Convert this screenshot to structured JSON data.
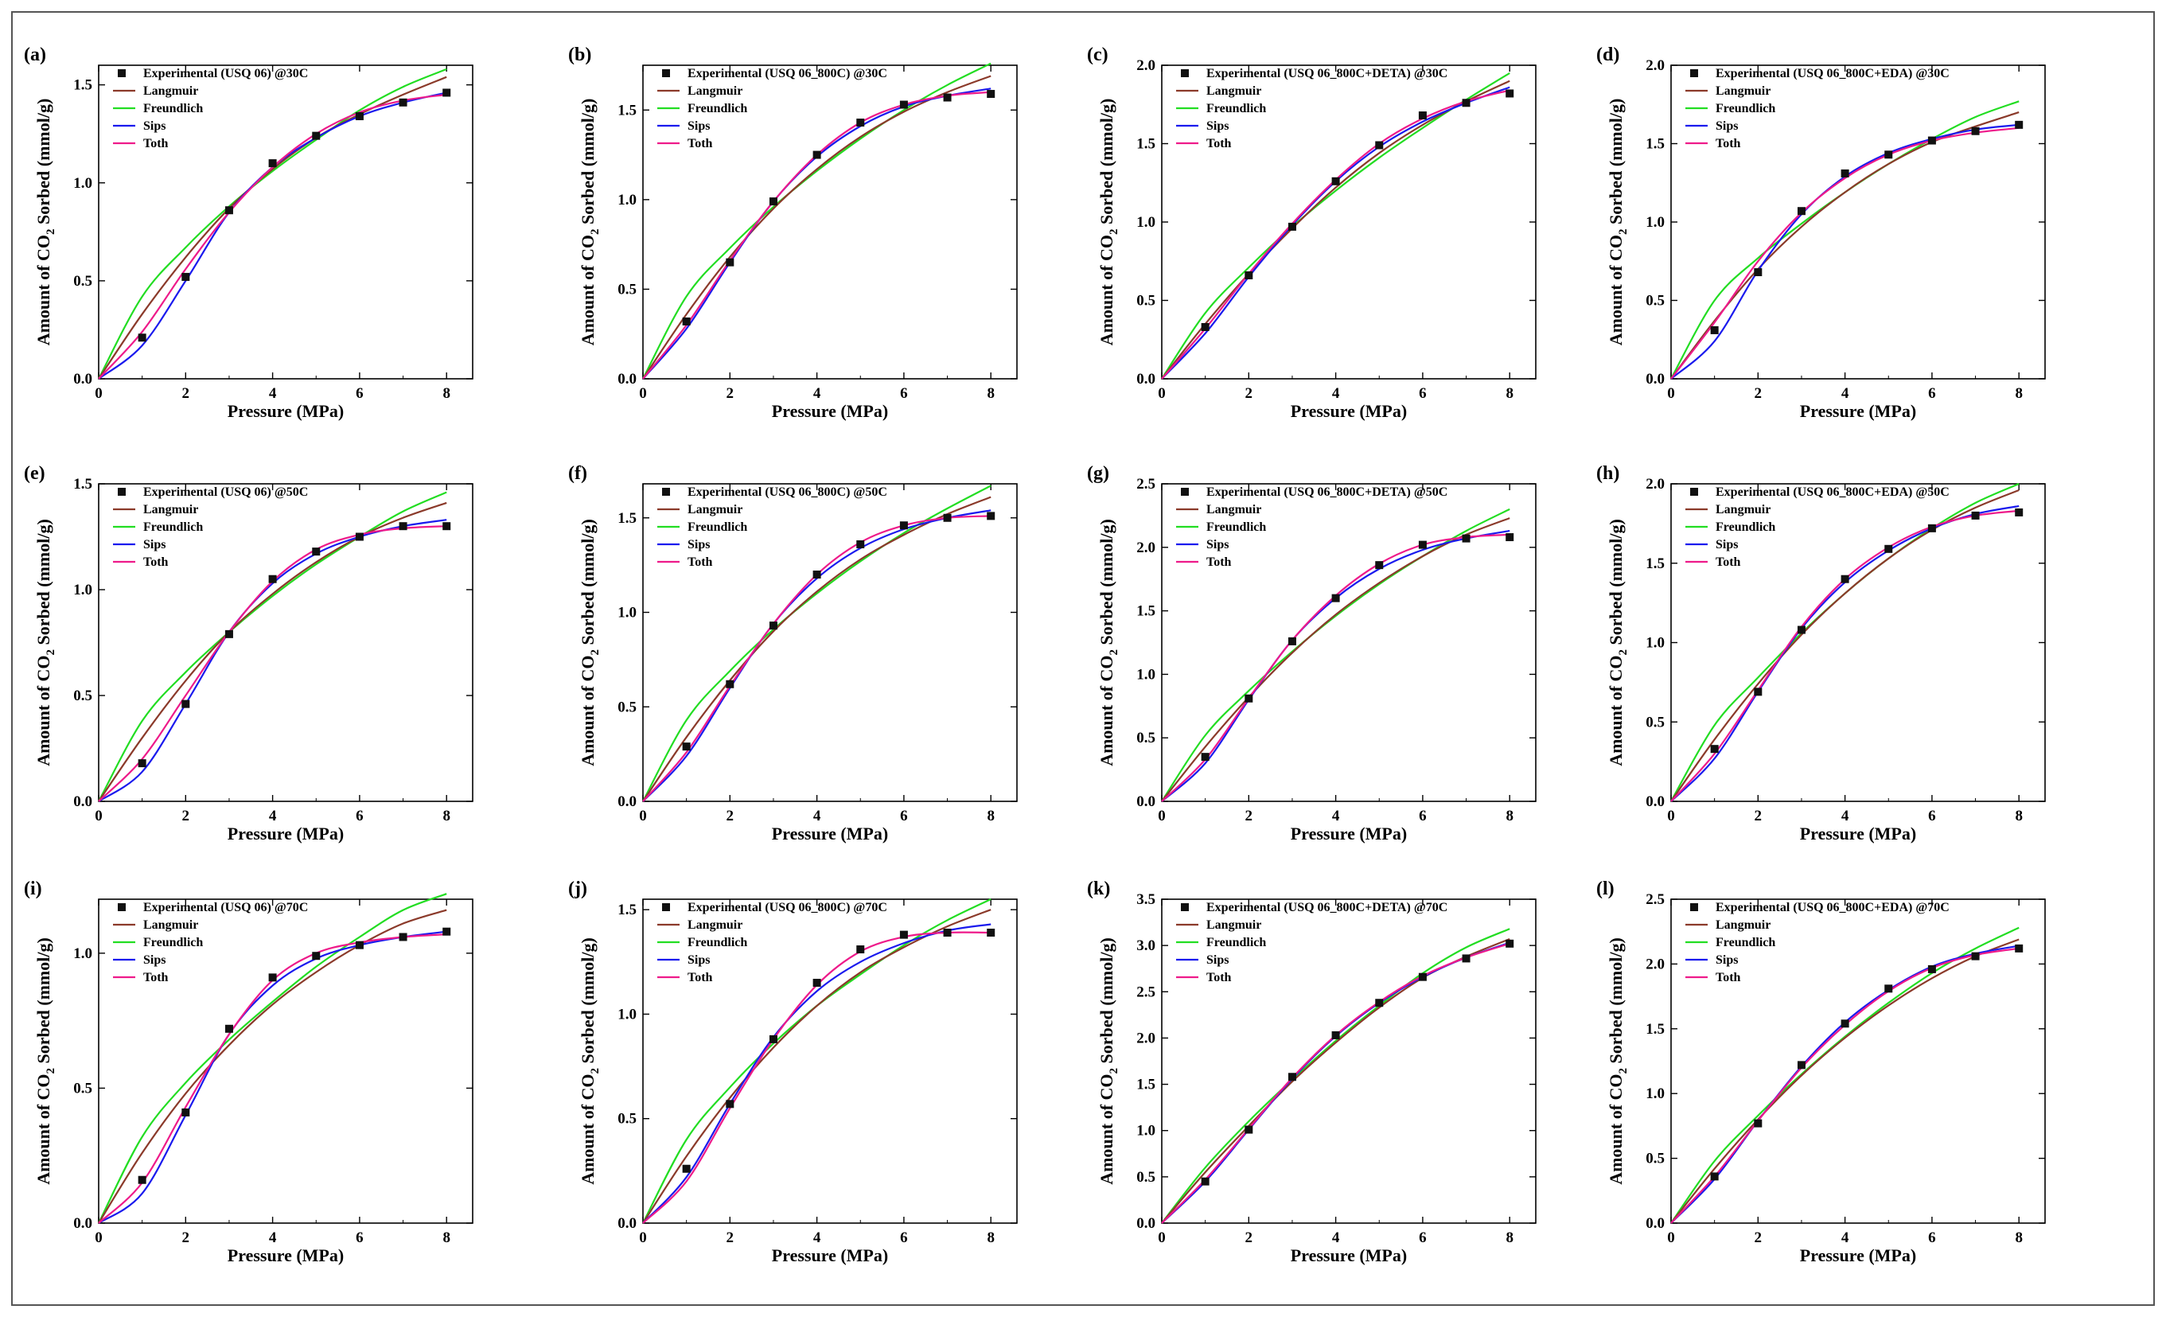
{
  "figure": {
    "series_colors": {
      "Langmuir": "#8b3a2a",
      "Freundlich": "#22dd22",
      "Sips": "#1a1aee",
      "Toth": "#ee1a8a",
      "Experimental": "#111111"
    }
  },
  "chart_data": [
    {
      "type": "scatter",
      "panel": "(a)",
      "legend": [
        "Experimental (USQ 06) @30C",
        "Langmuir",
        "Freundlich",
        "Sips",
        "Toth"
      ],
      "xlabel": "Pressure (MPa)",
      "ylabel": "Amount of CO2 Sorbed (mmol/g)",
      "xlim": [
        0,
        8.6
      ],
      "ylim": [
        0,
        1.6
      ],
      "xticks": [
        0,
        2,
        4,
        6,
        8
      ],
      "yticks": [
        0,
        0.5,
        1.0,
        1.5
      ],
      "yticklabels": [
        "0.0",
        "0.5",
        "1.0",
        "1.5"
      ],
      "x": [
        1,
        2,
        3,
        4,
        5,
        6,
        7,
        8
      ],
      "experimental": [
        0.21,
        0.52,
        0.86,
        1.1,
        1.24,
        1.34,
        1.41,
        1.46
      ],
      "fits": {
        "Langmuir": [
          0,
          0.33,
          0.62,
          0.87,
          1.07,
          1.23,
          1.35,
          1.45,
          1.54
        ],
        "Freundlich": [
          0,
          0.42,
          0.67,
          0.88,
          1.06,
          1.22,
          1.37,
          1.49,
          1.58
        ],
        "Sips": [
          0,
          0.17,
          0.5,
          0.85,
          1.08,
          1.23,
          1.34,
          1.41,
          1.46
        ],
        "Toth": [
          0,
          0.24,
          0.56,
          0.85,
          1.08,
          1.25,
          1.36,
          1.42,
          1.45
        ]
      }
    },
    {
      "type": "scatter",
      "panel": "(b)",
      "legend": [
        "Experimental (USQ 06_800C) @30C",
        "Langmuir",
        "Freundlich",
        "Sips",
        "Toth"
      ],
      "xlabel": "Pressure (MPa)",
      "ylabel": "Amount of CO2 Sorbed (mmol/g)",
      "xlim": [
        0,
        8.6
      ],
      "ylim": [
        0,
        1.75
      ],
      "xticks": [
        0,
        2,
        4,
        6,
        8
      ],
      "yticks": [
        0,
        0.5,
        1.0,
        1.5
      ],
      "yticklabels": [
        "0.0",
        "0.5",
        "1.0",
        "1.5"
      ],
      "x": [
        1,
        2,
        3,
        4,
        5,
        6,
        7,
        8
      ],
      "experimental": [
        0.32,
        0.65,
        0.99,
        1.25,
        1.43,
        1.53,
        1.57,
        1.59
      ],
      "fits": {
        "Langmuir": [
          0,
          0.36,
          0.68,
          0.95,
          1.17,
          1.35,
          1.49,
          1.6,
          1.69
        ],
        "Freundlich": [
          0,
          0.46,
          0.73,
          0.96,
          1.16,
          1.34,
          1.5,
          1.64,
          1.76
        ],
        "Sips": [
          0,
          0.28,
          0.65,
          0.99,
          1.24,
          1.41,
          1.52,
          1.58,
          1.62
        ],
        "Toth": [
          0,
          0.3,
          0.66,
          0.99,
          1.25,
          1.43,
          1.53,
          1.58,
          1.6
        ]
      }
    },
    {
      "type": "scatter",
      "panel": "(c)",
      "legend": [
        "Experimental (USQ 06_800C+DETA) @30C",
        "Langmuir",
        "Freundlich",
        "Sips",
        "Toth"
      ],
      "xlabel": "Pressure (MPa)",
      "ylabel": "Amount of CO2 Sorbed (mmol/g)",
      "xlim": [
        0,
        8.6
      ],
      "ylim": [
        0,
        2.0
      ],
      "xticks": [
        0,
        2,
        4,
        6,
        8
      ],
      "yticks": [
        0,
        0.5,
        1.0,
        1.5,
        2.0
      ],
      "yticklabels": [
        "0.0",
        "0.5",
        "1.0",
        "1.5",
        "2.0"
      ],
      "x": [
        1,
        2,
        3,
        4,
        5,
        6,
        7,
        8
      ],
      "experimental": [
        0.33,
        0.66,
        0.97,
        1.26,
        1.49,
        1.68,
        1.76,
        1.82
      ],
      "fits": {
        "Langmuir": [
          0,
          0.35,
          0.67,
          0.96,
          1.22,
          1.44,
          1.62,
          1.77,
          1.9
        ],
        "Freundlich": [
          0,
          0.42,
          0.71,
          0.97,
          1.2,
          1.41,
          1.6,
          1.78,
          1.95
        ],
        "Sips": [
          0,
          0.29,
          0.65,
          0.98,
          1.26,
          1.48,
          1.64,
          1.76,
          1.86
        ],
        "Toth": [
          0,
          0.32,
          0.67,
          0.99,
          1.27,
          1.5,
          1.66,
          1.77,
          1.84
        ]
      }
    },
    {
      "type": "scatter",
      "panel": "(d)",
      "legend": [
        "Experimental (USQ 06_800C+EDA)  @30C",
        "Langmuir",
        "Freundlich",
        "Sips",
        "Toth"
      ],
      "xlabel": "Pressure (MPa)",
      "ylabel": "Amount of CO2 Sorbed (mmol/g)",
      "xlim": [
        0,
        8.6
      ],
      "ylim": [
        0,
        2.0
      ],
      "xticks": [
        0,
        2,
        4,
        6,
        8
      ],
      "yticks": [
        0,
        0.5,
        1.0,
        1.5,
        2.0
      ],
      "yticklabels": [
        "0.0",
        "0.5",
        "1.0",
        "1.5",
        "2.0"
      ],
      "x": [
        1,
        2,
        3,
        4,
        5,
        6,
        7,
        8
      ],
      "experimental": [
        0.31,
        0.68,
        1.07,
        1.31,
        1.43,
        1.52,
        1.58,
        1.62
      ],
      "fits": {
        "Langmuir": [
          0,
          0.37,
          0.7,
          0.97,
          1.19,
          1.37,
          1.51,
          1.61,
          1.7
        ],
        "Freundlich": [
          0,
          0.5,
          0.77,
          0.99,
          1.19,
          1.37,
          1.53,
          1.67,
          1.77
        ],
        "Sips": [
          0,
          0.24,
          0.69,
          1.05,
          1.29,
          1.44,
          1.53,
          1.59,
          1.62
        ],
        "Toth": [
          0,
          0.36,
          0.75,
          1.06,
          1.28,
          1.43,
          1.52,
          1.57,
          1.6
        ]
      }
    },
    {
      "type": "scatter",
      "panel": "(e)",
      "legend": [
        "Experimental (USQ 06) @50C",
        "Langmuir",
        "Freundlich",
        "Sips",
        "Toth"
      ],
      "xlabel": "Pressure (MPa)",
      "ylabel": "Amount of CO2 Sorbed (mmol/g)",
      "xlim": [
        0,
        8.6
      ],
      "ylim": [
        0,
        1.5
      ],
      "xticks": [
        0,
        2,
        4,
        6,
        8
      ],
      "yticks": [
        0,
        0.5,
        1.0,
        1.5
      ],
      "yticklabels": [
        "0.0",
        "0.5",
        "1.0",
        "1.5"
      ],
      "x": [
        1,
        2,
        3,
        4,
        5,
        6,
        7,
        8
      ],
      "experimental": [
        0.18,
        0.46,
        0.79,
        1.05,
        1.18,
        1.25,
        1.3,
        1.3
      ],
      "fits": {
        "Langmuir": [
          0,
          0.3,
          0.57,
          0.8,
          0.98,
          1.13,
          1.25,
          1.34,
          1.41
        ],
        "Freundlich": [
          0,
          0.38,
          0.61,
          0.8,
          0.97,
          1.12,
          1.25,
          1.37,
          1.46
        ],
        "Sips": [
          0,
          0.14,
          0.46,
          0.8,
          1.03,
          1.17,
          1.25,
          1.3,
          1.33
        ],
        "Toth": [
          0,
          0.2,
          0.5,
          0.8,
          1.04,
          1.19,
          1.26,
          1.29,
          1.3
        ]
      }
    },
    {
      "type": "scatter",
      "panel": "(f)",
      "legend": [
        "Experimental (USQ 06_800C) @50C",
        "Langmuir",
        "Freundlich",
        "Sips",
        "Toth"
      ],
      "xlabel": "Pressure (MPa)",
      "ylabel": "Amount of CO2 Sorbed (mmol/g)",
      "xlim": [
        0,
        8.6
      ],
      "ylim": [
        0,
        1.68
      ],
      "xticks": [
        0,
        2,
        4,
        6,
        8
      ],
      "yticks": [
        0,
        0.5,
        1.0,
        1.5
      ],
      "yticklabels": [
        "0.0",
        "0.5",
        "1.0",
        "1.5"
      ],
      "x": [
        1,
        2,
        3,
        4,
        5,
        6,
        7,
        8
      ],
      "experimental": [
        0.29,
        0.62,
        0.93,
        1.2,
        1.36,
        1.46,
        1.5,
        1.51
      ],
      "fits": {
        "Langmuir": [
          0,
          0.34,
          0.64,
          0.9,
          1.11,
          1.28,
          1.41,
          1.52,
          1.61
        ],
        "Freundlich": [
          0,
          0.43,
          0.69,
          0.91,
          1.1,
          1.27,
          1.42,
          1.55,
          1.67
        ],
        "Sips": [
          0,
          0.24,
          0.6,
          0.94,
          1.18,
          1.34,
          1.44,
          1.5,
          1.54
        ],
        "Toth": [
          0,
          0.26,
          0.61,
          0.94,
          1.2,
          1.37,
          1.46,
          1.5,
          1.51
        ]
      }
    },
    {
      "type": "scatter",
      "panel": "(g)",
      "legend": [
        "Experimental (USQ 06_800C+DETA) @50C",
        "Langmuir",
        "Freundlich",
        "Sips",
        "Toth"
      ],
      "xlabel": "Pressure (MPa)",
      "ylabel": "Amount of CO2 Sorbed (mmol/g)",
      "xlim": [
        0,
        8.6
      ],
      "ylim": [
        0,
        2.5
      ],
      "xticks": [
        0,
        2,
        4,
        6,
        8
      ],
      "yticks": [
        0,
        0.5,
        1.0,
        1.5,
        2.0,
        2.5
      ],
      "yticklabels": [
        "0.0",
        "0.5",
        "1.0",
        "1.5",
        "2.0",
        "2.5"
      ],
      "x": [
        1,
        2,
        3,
        4,
        5,
        6,
        7,
        8
      ],
      "experimental": [
        0.35,
        0.81,
        1.26,
        1.6,
        1.86,
        2.02,
        2.07,
        2.08
      ],
      "fits": {
        "Langmuir": [
          0,
          0.43,
          0.82,
          1.17,
          1.47,
          1.72,
          1.93,
          2.1,
          2.23
        ],
        "Freundlich": [
          0,
          0.52,
          0.87,
          1.18,
          1.46,
          1.71,
          1.93,
          2.13,
          2.3
        ],
        "Sips": [
          0,
          0.3,
          0.8,
          1.27,
          1.6,
          1.83,
          1.98,
          2.07,
          2.13
        ],
        "Toth": [
          0,
          0.33,
          0.81,
          1.27,
          1.62,
          1.87,
          2.02,
          2.08,
          2.1
        ]
      }
    },
    {
      "type": "scatter",
      "panel": "(h)",
      "legend": [
        "Experimental (USQ 06_800C+EDA)  @50C",
        "Langmuir",
        "Freundlich",
        "Sips",
        "Toth"
      ],
      "xlabel": "Pressure (MPa)",
      "ylabel": "Amount of CO2 Sorbed (mmol/g)",
      "xlim": [
        0,
        8.6
      ],
      "ylim": [
        0,
        2.0
      ],
      "xticks": [
        0,
        2,
        4,
        6,
        8
      ],
      "yticks": [
        0,
        0.5,
        1.0,
        1.5,
        2.0
      ],
      "yticklabels": [
        "0.0",
        "0.5",
        "1.0",
        "1.5",
        "2.0"
      ],
      "x": [
        1,
        2,
        3,
        4,
        5,
        6,
        7,
        8
      ],
      "experimental": [
        0.33,
        0.69,
        1.08,
        1.4,
        1.59,
        1.72,
        1.8,
        1.82
      ],
      "fits": {
        "Langmuir": [
          0,
          0.39,
          0.74,
          1.05,
          1.31,
          1.53,
          1.71,
          1.85,
          1.96
        ],
        "Freundlich": [
          0,
          0.48,
          0.78,
          1.06,
          1.31,
          1.53,
          1.72,
          1.88,
          2.0
        ],
        "Sips": [
          0,
          0.27,
          0.69,
          1.09,
          1.38,
          1.58,
          1.72,
          1.81,
          1.86
        ],
        "Toth": [
          0,
          0.3,
          0.7,
          1.1,
          1.4,
          1.6,
          1.73,
          1.8,
          1.83
        ]
      }
    },
    {
      "type": "scatter",
      "panel": "(i)",
      "legend": [
        "Experimental (USQ 06) @70C",
        "Langmuir",
        "Freundlich",
        "Sips",
        "Toth"
      ],
      "xlabel": "Pressure (MPa)",
      "ylabel": "Amount of CO2 Sorbed (mmol/g)",
      "xlim": [
        0,
        8.6
      ],
      "ylim": [
        0,
        1.2
      ],
      "xticks": [
        0,
        2,
        4,
        6,
        8
      ],
      "yticks": [
        0,
        0.5,
        1.0
      ],
      "yticklabels": [
        "0.0",
        "0.5",
        "1.0"
      ],
      "x": [
        1,
        2,
        3,
        4,
        5,
        6,
        7,
        8
      ],
      "experimental": [
        0.16,
        0.41,
        0.72,
        0.91,
        0.99,
        1.03,
        1.06,
        1.08
      ],
      "fits": {
        "Langmuir": [
          0,
          0.26,
          0.48,
          0.66,
          0.81,
          0.93,
          1.03,
          1.11,
          1.16
        ],
        "Freundlich": [
          0,
          0.32,
          0.52,
          0.68,
          0.82,
          0.95,
          1.06,
          1.16,
          1.22
        ],
        "Sips": [
          0,
          0.11,
          0.4,
          0.7,
          0.88,
          0.98,
          1.03,
          1.06,
          1.08
        ],
        "Toth": [
          0,
          0.15,
          0.43,
          0.7,
          0.9,
          1.0,
          1.04,
          1.06,
          1.07
        ]
      }
    },
    {
      "type": "scatter",
      "panel": "(j)",
      "legend": [
        "Experimental (USQ 06_800C) @70C",
        "Langmuir",
        "Freundlich",
        "Sips",
        "Toth"
      ],
      "xlabel": "Pressure (MPa)",
      "ylabel": "Amount of CO2 Sorbed (mmol/g)",
      "xlim": [
        0,
        8.6
      ],
      "ylim": [
        0,
        1.55
      ],
      "xticks": [
        0,
        2,
        4,
        6,
        8
      ],
      "yticks": [
        0,
        0.5,
        1.0,
        1.5
      ],
      "yticklabels": [
        "0.0",
        "0.5",
        "1.0",
        "1.5"
      ],
      "x": [
        1,
        2,
        3,
        4,
        5,
        6,
        7,
        8
      ],
      "experimental": [
        0.26,
        0.57,
        0.88,
        1.15,
        1.31,
        1.38,
        1.39,
        1.39
      ],
      "fits": {
        "Langmuir": [
          0,
          0.32,
          0.6,
          0.84,
          1.04,
          1.2,
          1.32,
          1.42,
          1.5
        ],
        "Freundlich": [
          0,
          0.4,
          0.65,
          0.86,
          1.04,
          1.19,
          1.33,
          1.45,
          1.55
        ],
        "Sips": [
          0,
          0.22,
          0.57,
          0.89,
          1.11,
          1.25,
          1.34,
          1.4,
          1.43
        ],
        "Toth": [
          0,
          0.2,
          0.55,
          0.88,
          1.14,
          1.3,
          1.37,
          1.39,
          1.39
        ]
      }
    },
    {
      "type": "scatter",
      "panel": "(k)",
      "legend": [
        "Experimental (USQ 06_800C+DETA) @70C",
        "Langmuir",
        "Freundlich",
        "Sips",
        "Toth"
      ],
      "xlabel": "Pressure (MPa)",
      "ylabel": "Amount of CO2 Sorbed (mmol/g)",
      "xlim": [
        0,
        8.6
      ],
      "ylim": [
        0,
        3.5
      ],
      "xticks": [
        0,
        2,
        4,
        6,
        8
      ],
      "yticks": [
        0,
        0.5,
        1.0,
        1.5,
        2.0,
        2.5,
        3.0,
        3.5
      ],
      "yticklabels": [
        "0.0",
        "0.5",
        "1.0",
        "1.5",
        "2.0",
        "2.5",
        "3.0",
        "3.5"
      ],
      "x": [
        1,
        2,
        3,
        4,
        5,
        6,
        7,
        8
      ],
      "experimental": [
        0.45,
        1.01,
        1.58,
        2.03,
        2.38,
        2.66,
        2.86,
        3.02
      ],
      "fits": {
        "Langmuir": [
          0,
          0.55,
          1.05,
          1.53,
          1.95,
          2.33,
          2.65,
          2.88,
          3.07
        ],
        "Freundlich": [
          0,
          0.6,
          1.1,
          1.55,
          1.97,
          2.35,
          2.7,
          2.98,
          3.18
        ],
        "Sips": [
          0,
          0.45,
          1.01,
          1.56,
          2.02,
          2.38,
          2.66,
          2.87,
          3.03
        ],
        "Toth": [
          0,
          0.47,
          1.02,
          1.57,
          2.03,
          2.39,
          2.67,
          2.87,
          3.02
        ]
      }
    },
    {
      "type": "scatter",
      "panel": "(l)",
      "legend": [
        "Experimental (USQ 06_800C+EDA)  @70C",
        "Langmuir",
        "Freundlich",
        "Sips",
        "Toth"
      ],
      "xlabel": "Pressure (MPa)",
      "ylabel": "Amount of CO2 Sorbed (mmol/g)",
      "xlim": [
        0,
        8.6
      ],
      "ylim": [
        0,
        2.5
      ],
      "xticks": [
        0,
        2,
        4,
        6,
        8
      ],
      "yticks": [
        0,
        0.5,
        1.0,
        1.5,
        2.0,
        2.5
      ],
      "yticklabels": [
        "0.0",
        "0.5",
        "1.0",
        "1.5",
        "2.0",
        "2.5"
      ],
      "x": [
        1,
        2,
        3,
        4,
        5,
        6,
        7,
        8
      ],
      "experimental": [
        0.36,
        0.77,
        1.22,
        1.54,
        1.81,
        1.96,
        2.06,
        2.12
      ],
      "fits": {
        "Langmuir": [
          0,
          0.42,
          0.8,
          1.14,
          1.43,
          1.68,
          1.89,
          2.06,
          2.19
        ],
        "Freundlich": [
          0,
          0.48,
          0.83,
          1.15,
          1.44,
          1.7,
          1.93,
          2.12,
          2.28
        ],
        "Sips": [
          0,
          0.34,
          0.79,
          1.21,
          1.55,
          1.8,
          1.98,
          2.08,
          2.14
        ],
        "Toth": [
          0,
          0.36,
          0.79,
          1.2,
          1.53,
          1.79,
          1.97,
          2.07,
          2.12
        ]
      }
    }
  ]
}
